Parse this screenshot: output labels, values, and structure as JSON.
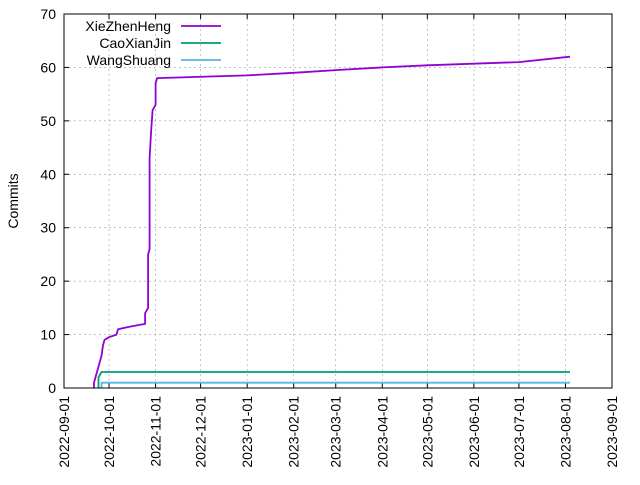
{
  "chart_data": {
    "type": "line",
    "title": "",
    "xlabel": "",
    "ylabel": "Commits",
    "x_ticks": [
      "2022-09-01",
      "2022-10-01",
      "2022-11-01",
      "2022-12-01",
      "2023-01-01",
      "2023-02-01",
      "2023-03-01",
      "2023-04-01",
      "2023-05-01",
      "2023-06-01",
      "2023-07-01",
      "2023-08-01",
      "2023-09-01"
    ],
    "xlim": [
      "2022-09-01",
      "2023-09-01"
    ],
    "y_ticks": [
      0,
      10,
      20,
      30,
      40,
      50,
      60,
      70
    ],
    "ylim": [
      0,
      70
    ],
    "grid": true,
    "legend_position": "top-left",
    "series": [
      {
        "name": "XieZhenHeng",
        "color": "#9400d3",
        "points": [
          [
            "2022-09-21",
            0
          ],
          [
            "2022-09-21",
            1
          ],
          [
            "2022-09-22",
            2
          ],
          [
            "2022-09-23",
            3
          ],
          [
            "2022-09-24",
            4
          ],
          [
            "2022-09-25",
            5
          ],
          [
            "2022-09-26",
            6
          ],
          [
            "2022-09-27",
            8
          ],
          [
            "2022-09-28",
            9
          ],
          [
            "2022-10-01",
            9.5
          ],
          [
            "2022-10-06",
            10
          ],
          [
            "2022-10-07",
            11
          ],
          [
            "2022-10-15",
            11.5
          ],
          [
            "2022-10-25",
            12
          ],
          [
            "2022-10-25",
            14
          ],
          [
            "2022-10-27",
            15
          ],
          [
            "2022-10-27",
            25
          ],
          [
            "2022-10-28",
            26
          ],
          [
            "2022-10-28",
            43
          ],
          [
            "2022-10-29",
            48
          ],
          [
            "2022-10-30",
            52
          ],
          [
            "2022-11-01",
            53
          ],
          [
            "2022-11-01",
            57
          ],
          [
            "2022-11-02",
            58
          ],
          [
            "2023-01-01",
            58.5
          ],
          [
            "2023-02-01",
            59
          ],
          [
            "2023-03-01",
            59.5
          ],
          [
            "2023-04-01",
            60
          ],
          [
            "2023-05-01",
            60.4
          ],
          [
            "2023-07-01",
            61
          ],
          [
            "2023-08-04",
            62
          ]
        ]
      },
      {
        "name": "CaoXianJin",
        "color": "#009e73",
        "points": [
          [
            "2022-09-24",
            0
          ],
          [
            "2022-09-24",
            2
          ],
          [
            "2022-09-26",
            3
          ],
          [
            "2023-08-04",
            3
          ]
        ]
      },
      {
        "name": "WangShuang",
        "color": "#56b4e9",
        "points": [
          [
            "2022-09-26",
            0
          ],
          [
            "2022-09-26",
            1
          ],
          [
            "2023-08-04",
            1
          ]
        ]
      }
    ]
  }
}
